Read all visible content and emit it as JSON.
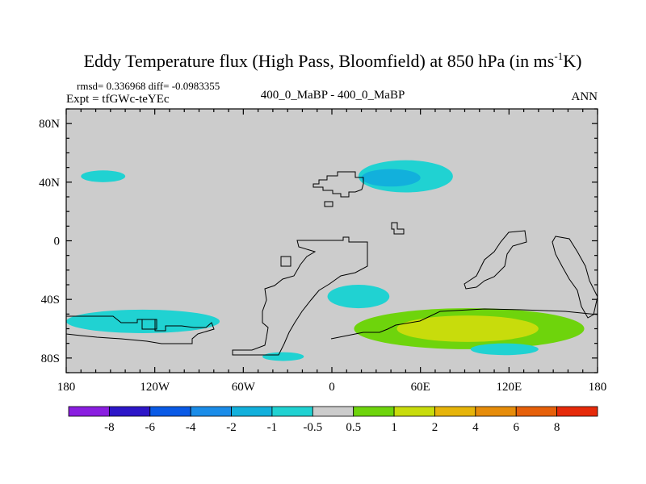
{
  "chart_data": {
    "type": "heatmap",
    "title": "Eddy Temperature flux (High Pass, Bloomfield) at 850 hPa (in ms",
    "title_sup": "-1",
    "title_end": "K)",
    "stats": "rmsd= 0.336968 diff= -0.0983355",
    "expt": "Expt = tfGWc-teYEc",
    "center_label": "400_0_MaBP - 400_0_MaBP",
    "right_label": "ANN",
    "xlim": [
      -180,
      180
    ],
    "ylim": [
      -90,
      90
    ],
    "x_ticks": [
      {
        "value": -180,
        "label": "180"
      },
      {
        "value": -120,
        "label": "120W"
      },
      {
        "value": -60,
        "label": "60W"
      },
      {
        "value": 0,
        "label": "0"
      },
      {
        "value": 60,
        "label": "60E"
      },
      {
        "value": 120,
        "label": "120E"
      },
      {
        "value": 180,
        "label": "180"
      }
    ],
    "y_ticks": [
      {
        "value": 80,
        "label": "80N"
      },
      {
        "value": 40,
        "label": "40N"
      },
      {
        "value": 0,
        "label": "0"
      },
      {
        "value": -40,
        "label": "40S"
      },
      {
        "value": -80,
        "label": "80S"
      }
    ],
    "background_color": "#cccccc",
    "colorbar": {
      "colors": [
        "#8a1ee0",
        "#2d16c8",
        "#0a5ae6",
        "#1a8ce8",
        "#12b0dc",
        "#20d2d2",
        "#cccccc",
        "#6ed40c",
        "#c8dc0c",
        "#e6b40a",
        "#e68c0a",
        "#e6600a",
        "#e62a0a"
      ],
      "labels": [
        "-8",
        "-6",
        "-4",
        "-2",
        "-1",
        "-0.5",
        "0.5",
        "1",
        "2",
        "4",
        "6",
        "8"
      ]
    },
    "regions": [
      {
        "level": "-0.5 to -1",
        "color": "#20d2d2",
        "lon": 50,
        "lat": 44,
        "lon_radius": 32,
        "lat_radius": 11
      },
      {
        "level": "-1 to -2",
        "color": "#12b0dc",
        "lon": 40,
        "lat": 43,
        "lon_radius": 20,
        "lat_radius": 6
      },
      {
        "level": "-0.5 to -1",
        "color": "#20d2d2",
        "lon": -155,
        "lat": 44,
        "lon_radius": 15,
        "lat_radius": 4
      },
      {
        "level": "-0.5 to -1",
        "color": "#20d2d2",
        "lon": -128,
        "lat": -55,
        "lon_radius": 52,
        "lat_radius": 8
      },
      {
        "level": "-0.5 to -1",
        "color": "#20d2d2",
        "lon": 18,
        "lat": -38,
        "lon_radius": 21,
        "lat_radius": 8
      },
      {
        "level": "-0.5 to -1",
        "color": "#20d2d2",
        "lon": -33,
        "lat": -79,
        "lon_radius": 14,
        "lat_radius": 3
      },
      {
        "level": "0.5 to 1",
        "color": "#6ed40c",
        "lon": 93,
        "lat": -60,
        "lon_radius": 78,
        "lat_radius": 14
      },
      {
        "level": "1 to 2",
        "color": "#c8dc0c",
        "lon": 92,
        "lat": -60,
        "lon_radius": 48,
        "lat_radius": 9
      },
      {
        "level": "-0.5 to -1",
        "color": "#20d2d2",
        "lon": 117,
        "lat": -74,
        "lon_radius": 23,
        "lat_radius": 4
      }
    ]
  }
}
